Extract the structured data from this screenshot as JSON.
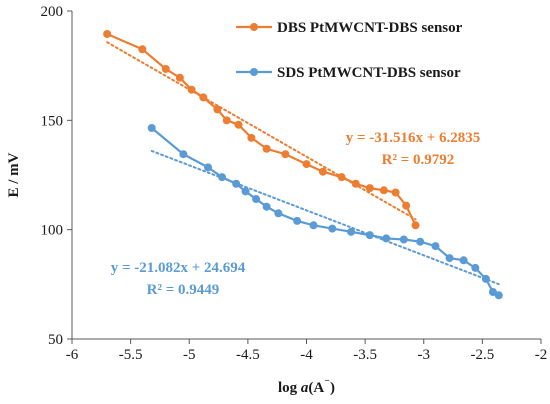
{
  "chart_data": {
    "type": "line",
    "xlabel": "log a(A⁻)",
    "xlabel_parts": [
      "log ",
      "a",
      "(A",
      "⁻",
      ")"
    ],
    "ylabel": "E / mV",
    "xlim": [
      -6,
      -2
    ],
    "ylim": [
      50,
      200
    ],
    "x_ticks": [
      -6,
      -5.5,
      -5,
      -4.5,
      -4,
      -3.5,
      -3,
      -2.5,
      -2
    ],
    "y_ticks": [
      50,
      100,
      150,
      200
    ],
    "legend_position": "top-right",
    "grid": false,
    "series": [
      {
        "name": "DBS PtMWCNT-DBS sensor",
        "color": "#ED7D31",
        "x": [
          -5.7,
          -5.4,
          -5.2,
          -5.08,
          -4.98,
          -4.88,
          -4.76,
          -4.68,
          -4.58,
          -4.47,
          -4.34,
          -4.18,
          -4.0,
          -3.86,
          -3.7,
          -3.58,
          -3.46,
          -3.34,
          -3.24,
          -3.15,
          -3.07
        ],
        "y": [
          189.5,
          182.5,
          173.5,
          169.5,
          164.0,
          160.5,
          155.0,
          150.0,
          148.0,
          142.0,
          137.0,
          134.5,
          130.0,
          126.5,
          124.0,
          121.0,
          119.0,
          118.0,
          117.0,
          111.0,
          102.0
        ],
        "trendline": {
          "slope": -31.516,
          "intercept": 6.2835,
          "x_range": [
            -5.7,
            -3.07
          ],
          "equation": "y = -31.516x + 6.2835",
          "r2": "R² = 0.9792"
        }
      },
      {
        "name": "SDS PtMWCNT-DBS sensor",
        "color": "#5B9BD5",
        "x": [
          -5.32,
          -5.05,
          -4.84,
          -4.72,
          -4.6,
          -4.52,
          -4.43,
          -4.34,
          -4.24,
          -4.08,
          -3.94,
          -3.78,
          -3.62,
          -3.46,
          -3.32,
          -3.17,
          -3.03,
          -2.9,
          -2.78,
          -2.66,
          -2.56,
          -2.47,
          -2.41,
          -2.36
        ],
        "y": [
          146.5,
          134.5,
          128.5,
          124.0,
          121.0,
          117.5,
          114.0,
          110.5,
          107.5,
          104.0,
          102.0,
          100.5,
          99.0,
          97.5,
          96.0,
          95.5,
          94.5,
          92.5,
          87.0,
          86.0,
          82.5,
          77.5,
          71.5,
          70.0
        ],
        "trendline": {
          "slope": -21.082,
          "intercept": 24.694,
          "x_range": [
            -5.32,
            -2.36
          ],
          "equation": "y = -21.082x + 24.694",
          "r2": "R² = 0.9449"
        }
      }
    ]
  }
}
